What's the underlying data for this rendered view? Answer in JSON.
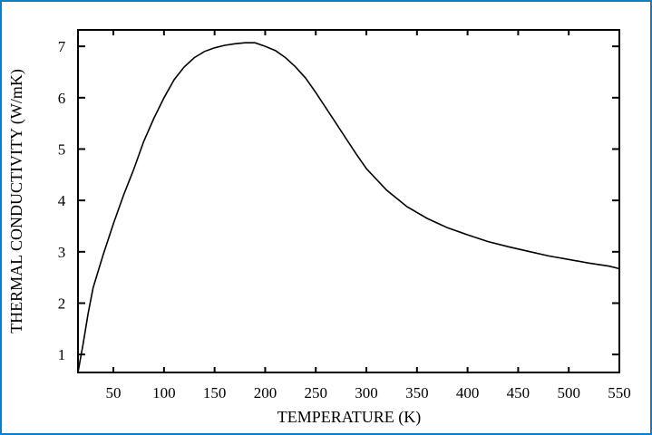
{
  "chart_data": {
    "type": "line",
    "title": "",
    "xlabel": "TEMPERATURE (K)",
    "ylabel": "THERMAL CONDUCTIVITY (W/mK)",
    "xlim": [
      15,
      550
    ],
    "ylim": [
      0.65,
      7.32
    ],
    "xticks": [
      50,
      100,
      150,
      200,
      250,
      300,
      350,
      400,
      450,
      500,
      550
    ],
    "yticks": [
      1,
      2,
      3,
      4,
      5,
      6,
      7
    ],
    "grid": false,
    "legend": null,
    "series": [
      {
        "name": "thermal conductivity",
        "x": [
          15,
          20,
          25,
          30,
          40,
          50,
          60,
          70,
          80,
          90,
          100,
          110,
          120,
          130,
          140,
          150,
          160,
          170,
          180,
          190,
          200,
          210,
          220,
          230,
          240,
          250,
          260,
          270,
          280,
          290,
          300,
          320,
          340,
          360,
          380,
          400,
          420,
          440,
          460,
          480,
          500,
          520,
          540,
          550
        ],
        "y": [
          0.65,
          1.2,
          1.8,
          2.3,
          2.95,
          3.55,
          4.1,
          4.6,
          5.15,
          5.6,
          6.0,
          6.35,
          6.6,
          6.78,
          6.9,
          6.97,
          7.02,
          7.05,
          7.07,
          7.07,
          7.0,
          6.92,
          6.78,
          6.6,
          6.38,
          6.1,
          5.8,
          5.5,
          5.2,
          4.9,
          4.62,
          4.2,
          3.88,
          3.65,
          3.47,
          3.33,
          3.2,
          3.1,
          3.01,
          2.92,
          2.85,
          2.78,
          2.72,
          2.67
        ]
      }
    ]
  },
  "colors": {
    "border": "#0a7fc4",
    "line": "#000000"
  }
}
